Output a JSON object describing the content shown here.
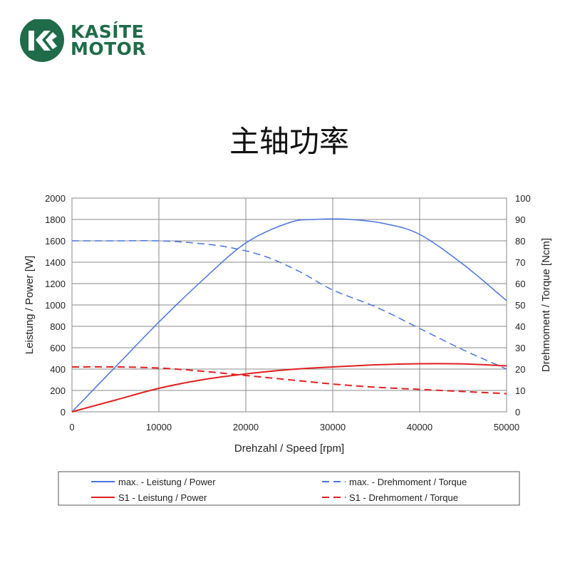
{
  "brand": {
    "line1": "KASÍTE",
    "line2": "MOTOR",
    "color": "#1f6b4a"
  },
  "page_title": "主轴功率",
  "chart_data": {
    "type": "line",
    "xlabel": "Drehzahl / Speed [rpm]",
    "ylabel_left": "Leistung / Power [W]",
    "ylabel_right": "Drehmoment / Torque [Ncm]",
    "xlim": [
      0,
      50000
    ],
    "ylim_left": [
      0,
      2000
    ],
    "ylim_right": [
      0,
      100
    ],
    "x_ticks": [
      0,
      10000,
      20000,
      30000,
      40000,
      50000
    ],
    "y_left_ticks": [
      0,
      200,
      400,
      600,
      800,
      1000,
      1200,
      1400,
      1600,
      1800,
      2000
    ],
    "y_right_ticks": [
      0,
      10,
      20,
      30,
      40,
      50,
      60,
      70,
      80,
      90,
      100
    ],
    "grid": true,
    "legend_position": "bottom",
    "series": [
      {
        "name": "max. - Leistung / Power",
        "axis": "left",
        "color": "#4a73e0",
        "dash": "solid",
        "points": [
          [
            0,
            0
          ],
          [
            5000,
            420
          ],
          [
            10000,
            840
          ],
          [
            15000,
            1230
          ],
          [
            20000,
            1580
          ],
          [
            25000,
            1770
          ],
          [
            28000,
            1800
          ],
          [
            32000,
            1800
          ],
          [
            36000,
            1760
          ],
          [
            40000,
            1660
          ],
          [
            45000,
            1380
          ],
          [
            50000,
            1040
          ]
        ]
      },
      {
        "name": "max. - Drehmoment / Torque",
        "axis": "right",
        "color": "#4a73e0",
        "dash": "dashed",
        "points": [
          [
            0,
            80
          ],
          [
            5000,
            80
          ],
          [
            10000,
            80
          ],
          [
            14000,
            79
          ],
          [
            18000,
            77
          ],
          [
            22000,
            73
          ],
          [
            26000,
            66
          ],
          [
            30000,
            57
          ],
          [
            35000,
            49
          ],
          [
            40000,
            39
          ],
          [
            45000,
            29
          ],
          [
            50000,
            20
          ]
        ]
      },
      {
        "name": "S1 - Leistung / Power",
        "axis": "left",
        "color": "#e02020",
        "dash": "solid",
        "points": [
          [
            0,
            0
          ],
          [
            5000,
            110
          ],
          [
            10000,
            220
          ],
          [
            15000,
            300
          ],
          [
            20000,
            355
          ],
          [
            25000,
            395
          ],
          [
            30000,
            420
          ],
          [
            35000,
            440
          ],
          [
            40000,
            450
          ],
          [
            45000,
            448
          ],
          [
            50000,
            430
          ]
        ]
      },
      {
        "name": "S1 - Drehmoment / Torque",
        "axis": "right",
        "color": "#e02020",
        "dash": "dashed",
        "points": [
          [
            0,
            21
          ],
          [
            5000,
            21
          ],
          [
            10000,
            20.5
          ],
          [
            15000,
            19
          ],
          [
            20000,
            17
          ],
          [
            25000,
            15
          ],
          [
            30000,
            13
          ],
          [
            35000,
            11.5
          ],
          [
            40000,
            10.5
          ],
          [
            45000,
            9.5
          ],
          [
            50000,
            8.5
          ]
        ]
      }
    ]
  }
}
